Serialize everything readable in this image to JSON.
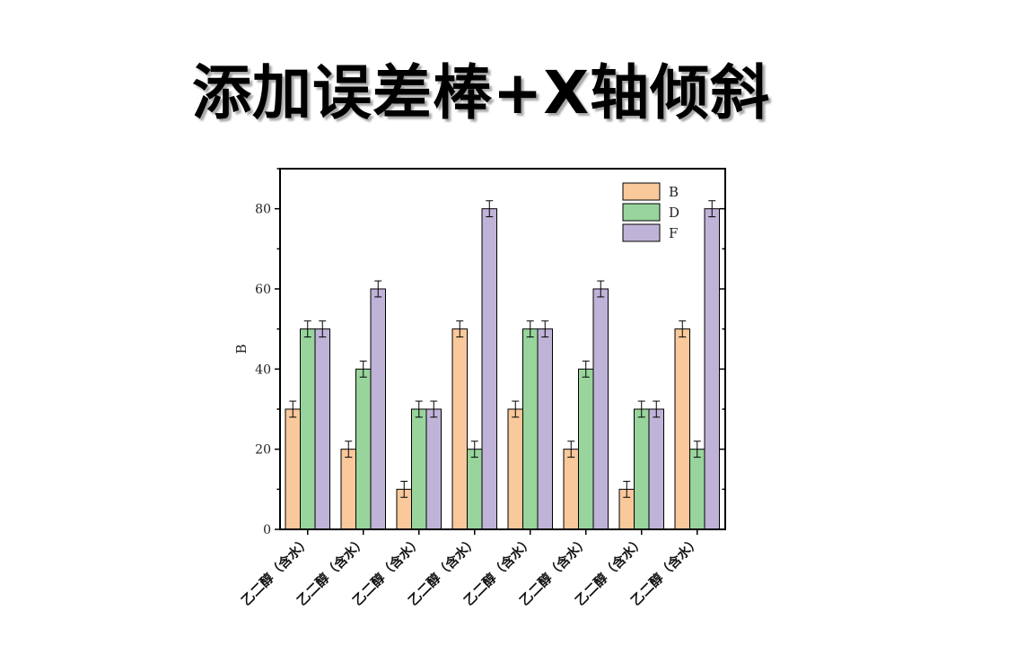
{
  "page": {
    "title": "添加误差棒+X轴倾斜"
  },
  "chart_data": {
    "type": "bar",
    "title": "",
    "xlabel": "",
    "ylabel": "B",
    "ylim": [
      0,
      90
    ],
    "yticks": [
      0,
      20,
      40,
      60,
      80
    ],
    "categories": [
      "乙二醇（含水）",
      "乙二醇（含水）",
      "乙二醇（含水）",
      "乙二醇（含水）",
      "乙二醇（含水）",
      "乙二醇（含水）",
      "乙二醇（含水）",
      "乙二醇（含水）"
    ],
    "x_tick_rotation_deg": 45,
    "legend_position": "top-right",
    "grid": false,
    "series": [
      {
        "name": "B",
        "color": "#f9c89b",
        "values": [
          30,
          20,
          10,
          50,
          30,
          20,
          10,
          50
        ],
        "errors": [
          2,
          2,
          2,
          2,
          2,
          2,
          2,
          2
        ]
      },
      {
        "name": "D",
        "color": "#98d49c",
        "values": [
          50,
          40,
          30,
          20,
          50,
          40,
          30,
          20
        ],
        "errors": [
          2,
          2,
          2,
          2,
          2,
          2,
          2,
          2
        ]
      },
      {
        "name": "F",
        "color": "#c0b3d8",
        "values": [
          50,
          60,
          30,
          80,
          50,
          60,
          30,
          80
        ],
        "errors": [
          2,
          2,
          2,
          2,
          2,
          2,
          2,
          2
        ]
      }
    ]
  }
}
